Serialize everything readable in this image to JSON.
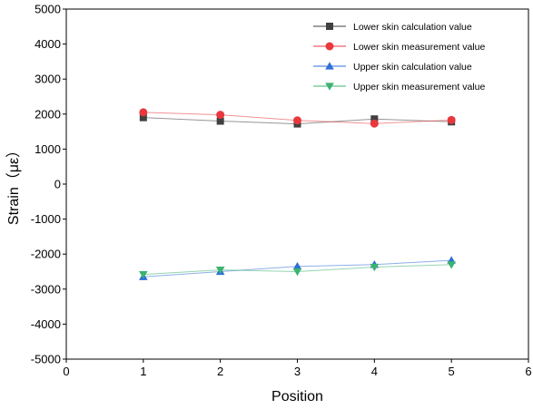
{
  "chart_data": {
    "type": "line",
    "title": "",
    "xlabel": "Position",
    "ylabel": "Strain（με）",
    "xlim": [
      0,
      6
    ],
    "ylim": [
      -5000,
      5000
    ],
    "x_ticks": [
      0,
      1,
      2,
      3,
      4,
      5,
      6
    ],
    "y_ticks": [
      -5000,
      -4000,
      -3000,
      -2000,
      -1000,
      0,
      1000,
      2000,
      3000,
      4000,
      5000
    ],
    "grid": false,
    "legend_position": "top-right",
    "x": [
      1,
      2,
      3,
      4,
      5
    ],
    "series": [
      {
        "name": "Lower  skin calculation value",
        "color": "#404040",
        "marker": "square",
        "values": [
          1900,
          1800,
          1720,
          1860,
          1780
        ]
      },
      {
        "name": "Lower  skin measurement value",
        "color": "#e8383d",
        "marker": "circle",
        "values": [
          2050,
          1980,
          1820,
          1730,
          1830
        ]
      },
      {
        "name": "Upper  skin calculation value",
        "color": "#2f6fd6",
        "marker": "triangle-up",
        "values": [
          -2650,
          -2500,
          -2350,
          -2300,
          -2180
        ]
      },
      {
        "name": "Upper  skin measurement value",
        "color": "#3cb371",
        "marker": "triangle-down",
        "values": [
          -2580,
          -2450,
          -2500,
          -2370,
          -2300
        ]
      }
    ]
  }
}
